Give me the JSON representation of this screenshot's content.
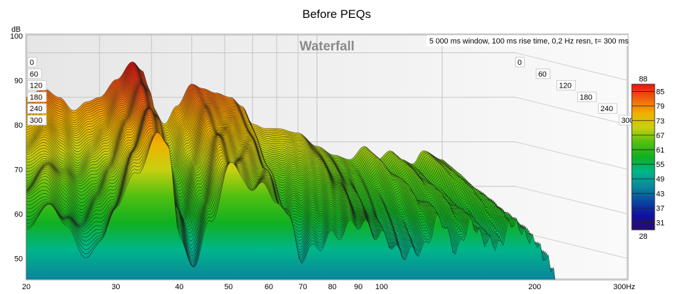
{
  "chart_data": {
    "type": "waterfall",
    "title": "Before PEQs",
    "inner_title": "Waterfall",
    "annotation": "5 000 ms window, 100 ms rise time,  0,2 Hz resn, t= 300 ms",
    "ylabel": "dB",
    "ylim": [
      45,
      100
    ],
    "y_ticks": [
      "100",
      "90",
      "80",
      "70",
      "60",
      "50"
    ],
    "x_scale": "log",
    "xlim": [
      20,
      300
    ],
    "x_ticks": [
      "20",
      "30",
      "40",
      "50",
      "60",
      "70",
      "80",
      "90",
      "100",
      "200",
      "300Hz"
    ],
    "time_ticks_ms": [
      "0",
      "60",
      "120",
      "180",
      "240",
      "300"
    ],
    "time_range_ms": [
      0,
      300
    ],
    "colorbar": {
      "min": "28",
      "max": "88",
      "ticks": [
        "85",
        "79",
        "73",
        "67",
        "61",
        "55",
        "49",
        "43",
        "37",
        "31"
      ],
      "colors": [
        "#2a0a6e",
        "#1010a0",
        "#0a4aa0",
        "#0a8a9a",
        "#00b58a",
        "#10b020",
        "#50c010",
        "#c8d010",
        "#f0b000",
        "#f06010",
        "#f01010"
      ]
    },
    "response_t0": {
      "freq_hz": [
        20,
        22,
        24,
        26,
        28,
        30,
        33,
        36,
        38,
        40,
        43,
        46,
        50,
        53,
        57,
        62,
        66,
        70,
        75,
        80,
        90,
        100,
        110,
        120,
        130,
        140,
        150,
        160,
        170,
        180,
        200,
        210,
        220
      ],
      "db": [
        80,
        82,
        80,
        77,
        79,
        80,
        84,
        88,
        86,
        78,
        74,
        78,
        83,
        82,
        81,
        80,
        78,
        74,
        73,
        73,
        72,
        69,
        67,
        66,
        69,
        66,
        68,
        66,
        65,
        68,
        66,
        64,
        63
      ]
    },
    "decay_db_at_300ms": [
      22,
      20,
      24,
      26,
      24,
      20,
      14,
      10,
      12,
      22,
      26,
      20,
      12,
      14,
      15,
      16,
      20,
      24,
      20,
      18,
      14,
      14,
      16,
      14,
      10,
      14,
      10,
      12,
      12,
      10,
      12,
      14,
      16
    ]
  }
}
